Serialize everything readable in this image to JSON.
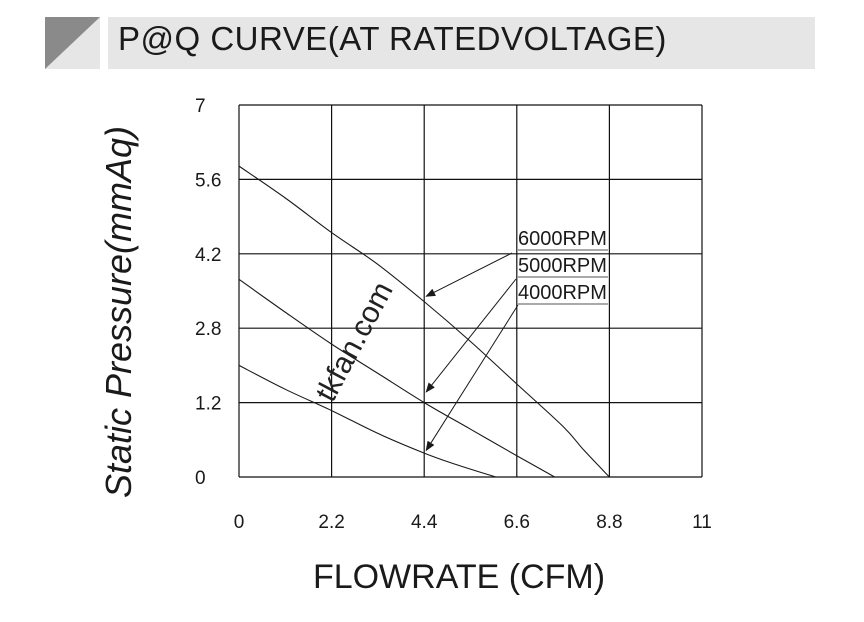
{
  "header": {
    "title": "P@Q CURVE(AT RATEDVOLTAGE)"
  },
  "watermark": "tkfan.com",
  "chart_data": {
    "type": "line",
    "xlabel": "FLOWRATE (CFM)",
    "ylabel": "Static  Pressure(mmAq)",
    "xlim": [
      0,
      11
    ],
    "ylim": [
      0,
      7
    ],
    "x_ticks": [
      "0",
      "2.2",
      "4.4",
      "6.6",
      "8.8",
      "11"
    ],
    "y_ticks": [
      "0",
      "1.2",
      "2.8",
      "4.2",
      "5.6",
      "7"
    ],
    "grid": true,
    "series": [
      {
        "name": "6000RPM",
        "x": [
          0,
          1.1,
          2.2,
          3.3,
          4.4,
          5.5,
          6.6,
          7.7,
          8.2,
          8.8
        ],
        "y": [
          5.85,
          5.25,
          4.6,
          4.0,
          3.3,
          2.55,
          1.75,
          0.95,
          0.5,
          0.0
        ]
      },
      {
        "name": "5000RPM",
        "x": [
          0,
          1.1,
          2.2,
          3.3,
          4.4,
          5.5,
          6.6,
          7.5
        ],
        "y": [
          3.72,
          3.1,
          2.5,
          1.95,
          1.4,
          0.9,
          0.4,
          0.0
        ]
      },
      {
        "name": "4000RPM",
        "x": [
          0,
          1.1,
          2.2,
          3.3,
          4.4,
          5.1,
          6.1
        ],
        "y": [
          2.1,
          1.65,
          1.25,
          0.82,
          0.45,
          0.25,
          0.0
        ]
      }
    ],
    "annotations": [
      {
        "label": "6000RPM",
        "target": [
          4.4,
          3.4
        ]
      },
      {
        "label": "5000RPM",
        "target": [
          4.4,
          1.6
        ]
      },
      {
        "label": "4000RPM",
        "target": [
          4.4,
          0.5
        ]
      }
    ]
  }
}
